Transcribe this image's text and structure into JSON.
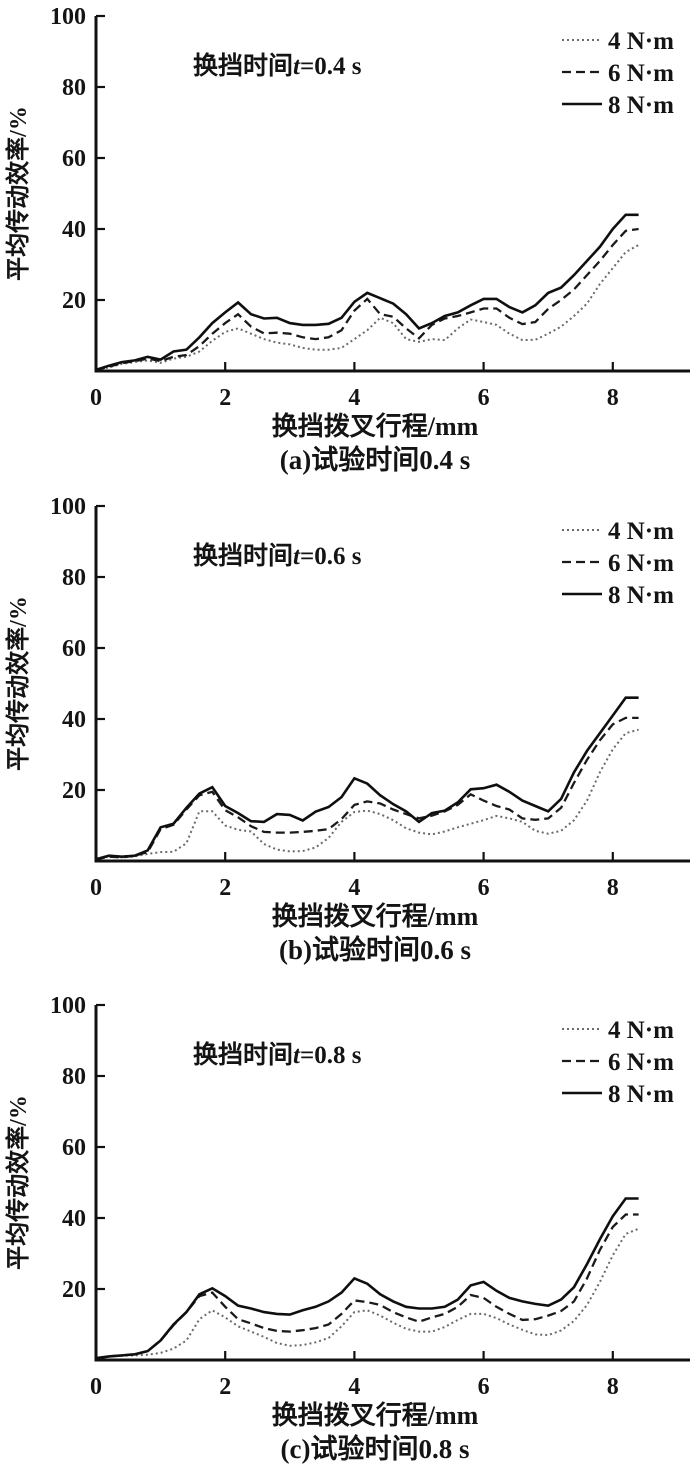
{
  "colors": {
    "background": "#ffffff",
    "text": "#141414",
    "axis": "#111111",
    "solid_line": "#0f0f0f",
    "dashed_line": "#1a1a1a",
    "dotted_line": "#6a6a6a"
  },
  "chart_data": [
    {
      "panel": "a",
      "type": "line",
      "annotation": {
        "prefix": "换挡时间",
        "var": "t",
        "suffix": "=0.4 s"
      },
      "caption": "(a)试验时间0.4 s",
      "xlabel": "换挡拨叉行程/mm",
      "ylabel": "平均传动效率/%",
      "xlim": [
        0,
        9.2
      ],
      "ylim": [
        0,
        100
      ],
      "xticks": [
        0,
        2,
        4,
        6,
        8
      ],
      "yticks": [
        20,
        40,
        60,
        80,
        100
      ],
      "legend_position": "top-right-inside",
      "grid": false,
      "x": [
        0,
        0.2,
        0.4,
        0.6,
        0.8,
        1.0,
        1.2,
        1.4,
        1.6,
        1.8,
        2.0,
        2.2,
        2.4,
        2.6,
        2.8,
        3.0,
        3.2,
        3.4,
        3.6,
        3.8,
        4.0,
        4.2,
        4.4,
        4.6,
        4.8,
        5.0,
        5.2,
        5.4,
        5.6,
        5.8,
        6.0,
        6.2,
        6.4,
        6.6,
        6.8,
        7.0,
        7.2,
        7.4,
        7.6,
        7.8,
        8.0,
        8.2,
        8.4
      ],
      "series": [
        {
          "name": "4 N·m",
          "style": "dotted",
          "values": [
            0.3,
            1,
            2,
            2.5,
            3,
            2.3,
            3.5,
            4,
            5.5,
            8.5,
            11,
            12,
            10.5,
            9,
            8,
            7.5,
            6.5,
            6,
            6,
            6.5,
            9,
            11.5,
            15,
            13.5,
            9,
            8.2,
            9,
            8.7,
            12,
            14.5,
            13.8,
            13,
            10.5,
            8.7,
            8.8,
            10.5,
            12.5,
            15.5,
            19,
            24.5,
            29,
            33.5,
            35.5
          ]
        },
        {
          "name": "6 N·m",
          "style": "dashed",
          "values": [
            0.3,
            1.2,
            2.2,
            2.8,
            3.5,
            2.8,
            4,
            4.5,
            7,
            10.5,
            13.5,
            16,
            12.5,
            10.6,
            10.8,
            10.5,
            9.5,
            9,
            9.5,
            11.5,
            17,
            20.3,
            16,
            15.3,
            12,
            9.2,
            13,
            14.8,
            15.5,
            16.5,
            17.6,
            17.6,
            15,
            13.2,
            13.8,
            17.5,
            20,
            23,
            27,
            31,
            35.5,
            39.5,
            40
          ]
        },
        {
          "name": "8 N·m",
          "style": "solid",
          "values": [
            0.3,
            1.5,
            2.5,
            3,
            4,
            3.2,
            5.5,
            6,
            9.5,
            13.5,
            16.5,
            19.3,
            16,
            14.8,
            15,
            13.5,
            13,
            13,
            13.3,
            15,
            19.5,
            22,
            20.5,
            19,
            16,
            12,
            13.5,
            15.5,
            16.5,
            18.5,
            20.3,
            20.3,
            18,
            16.5,
            18.5,
            22,
            23.5,
            27,
            31,
            35,
            40,
            44,
            44
          ]
        }
      ]
    },
    {
      "panel": "b",
      "type": "line",
      "annotation": {
        "prefix": "换挡时间",
        "var": "t",
        "suffix": "=0.6 s"
      },
      "caption": "(b)试验时间0.6 s",
      "xlabel": "换挡拨叉行程/mm",
      "ylabel": "平均传动效率/%",
      "xlim": [
        0,
        9.2
      ],
      "ylim": [
        0,
        100
      ],
      "xticks": [
        0,
        2,
        4,
        6,
        8
      ],
      "yticks": [
        20,
        40,
        60,
        80,
        100
      ],
      "legend_position": "top-right-inside",
      "grid": false,
      "x": [
        0,
        0.2,
        0.4,
        0.6,
        0.8,
        1.0,
        1.2,
        1.4,
        1.6,
        1.8,
        2.0,
        2.2,
        2.4,
        2.6,
        2.8,
        3.0,
        3.2,
        3.4,
        3.6,
        3.8,
        4.0,
        4.2,
        4.4,
        4.6,
        4.8,
        5.0,
        5.2,
        5.4,
        5.6,
        5.8,
        6.0,
        6.2,
        6.4,
        6.6,
        6.8,
        7.0,
        7.2,
        7.4,
        7.6,
        7.8,
        8.0,
        8.2,
        8.4
      ],
      "series": [
        {
          "name": "4 N·m",
          "style": "dotted",
          "values": [
            0.5,
            1.3,
            1,
            1.3,
            2,
            2.5,
            2.6,
            5,
            14,
            14,
            10,
            8.8,
            8.3,
            4.8,
            3.2,
            2.7,
            2.8,
            3.8,
            6.5,
            11,
            13.8,
            14.2,
            13.2,
            11.5,
            9.2,
            8,
            7.5,
            8.3,
            9.5,
            10.5,
            11.5,
            12.7,
            12,
            11,
            8.5,
            7.7,
            8.5,
            11.5,
            17,
            25,
            31.5,
            36,
            37
          ]
        },
        {
          "name": "6 N·m",
          "style": "dashed",
          "values": [
            0.5,
            1.2,
            1,
            1.5,
            2.5,
            9,
            10.2,
            14.5,
            18.5,
            19.5,
            14.3,
            12.3,
            9.8,
            8.2,
            8,
            8,
            8.2,
            8.5,
            9,
            11.8,
            15.8,
            16.8,
            16.2,
            14.5,
            13.2,
            12,
            12.8,
            14,
            15.8,
            18.8,
            17,
            15.5,
            14.5,
            12,
            11.6,
            12,
            15,
            22,
            28.5,
            34,
            38.5,
            40.3,
            40.3
          ]
        },
        {
          "name": "8 N·m",
          "style": "solid",
          "values": [
            0.5,
            1.5,
            1.2,
            1.5,
            3,
            9.5,
            10.5,
            15,
            19,
            20.8,
            15.5,
            13.5,
            11.2,
            11,
            13.2,
            13,
            11.4,
            13.9,
            15.2,
            18,
            23.3,
            21.8,
            18.5,
            16,
            14,
            11,
            13.5,
            14.2,
            16.5,
            20.2,
            20.5,
            21.5,
            19.5,
            17,
            15.5,
            14,
            17.5,
            25,
            31,
            36,
            41,
            46,
            46
          ]
        }
      ]
    },
    {
      "panel": "c",
      "type": "line",
      "annotation": {
        "prefix": "换挡时间",
        "var": "t",
        "suffix": "=0.8 s"
      },
      "caption": "(c)试验时间0.8 s",
      "xlabel": "换挡拨叉行程/mm",
      "ylabel": "平均传动效率/%",
      "xlim": [
        0,
        9.2
      ],
      "ylim": [
        0,
        100
      ],
      "xticks": [
        0,
        2,
        4,
        6,
        8
      ],
      "yticks": [
        20,
        40,
        60,
        80,
        100
      ],
      "legend_position": "top-right-inside",
      "grid": false,
      "x": [
        0,
        0.2,
        0.4,
        0.6,
        0.8,
        1.0,
        1.2,
        1.4,
        1.6,
        1.8,
        2.0,
        2.2,
        2.4,
        2.6,
        2.8,
        3.0,
        3.2,
        3.4,
        3.6,
        3.8,
        4.0,
        4.2,
        4.4,
        4.6,
        4.8,
        5.0,
        5.2,
        5.4,
        5.6,
        5.8,
        6.0,
        6.2,
        6.4,
        6.6,
        6.8,
        7.0,
        7.2,
        7.4,
        7.6,
        7.8,
        8.0,
        8.2,
        8.4
      ],
      "series": [
        {
          "name": "4 N·m",
          "style": "dotted",
          "values": [
            0.5,
            1,
            1.2,
            1.3,
            1.5,
            2,
            3.2,
            5.5,
            11.5,
            14,
            12,
            9.5,
            8,
            6.5,
            4.8,
            4,
            4.2,
            5,
            6.2,
            9.5,
            13.5,
            14,
            12.5,
            10.5,
            8.8,
            8,
            8,
            9.3,
            11.3,
            13,
            13,
            11.8,
            10,
            8.5,
            7.2,
            7,
            8.3,
            11,
            15.5,
            22,
            29.5,
            35.5,
            37
          ]
        },
        {
          "name": "6 N·m",
          "style": "dashed",
          "values": [
            0.5,
            1,
            1.3,
            1.6,
            2.5,
            5.5,
            9.8,
            13.5,
            18,
            19,
            15,
            11.5,
            10.3,
            9,
            8.2,
            8,
            8.4,
            9,
            10,
            13,
            16.8,
            16.3,
            15.5,
            13.5,
            12,
            10.8,
            12,
            13,
            15,
            18.3,
            17.5,
            15,
            13,
            11.3,
            11.5,
            12.5,
            13.8,
            16.5,
            23,
            31,
            37.5,
            41,
            41
          ]
        },
        {
          "name": "8 N·m",
          "style": "solid",
          "values": [
            0.5,
            1,
            1.3,
            1.6,
            2.5,
            5.5,
            10,
            13.5,
            18.5,
            20.2,
            18,
            15.3,
            14.5,
            13.5,
            13,
            12.8,
            14,
            15,
            16.5,
            19,
            23,
            21.5,
            18.5,
            16.5,
            15,
            14.5,
            14.5,
            15,
            17,
            21,
            22,
            19.5,
            17.5,
            16.5,
            15.8,
            15.3,
            17,
            20.5,
            27,
            34,
            40.5,
            45.5,
            45.5
          ]
        }
      ]
    }
  ]
}
